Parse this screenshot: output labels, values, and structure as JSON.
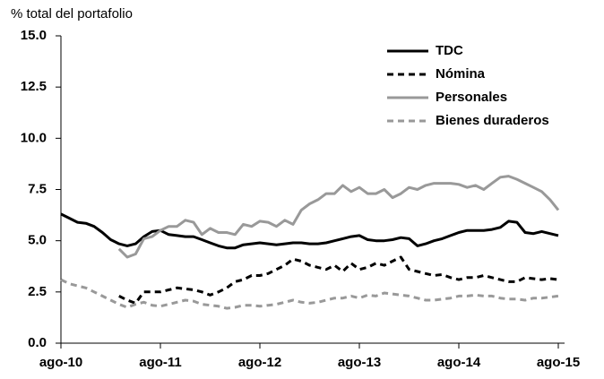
{
  "chart_data": {
    "type": "line",
    "y_label": "% total del portafolio",
    "categories": [
      "ago-10",
      null,
      null,
      null,
      null,
      null,
      null,
      null,
      null,
      null,
      null,
      null,
      "ago-11",
      null,
      null,
      null,
      null,
      null,
      null,
      null,
      null,
      null,
      null,
      null,
      "ago-12",
      null,
      null,
      null,
      null,
      null,
      null,
      null,
      null,
      null,
      null,
      null,
      "ago-13",
      null,
      null,
      null,
      null,
      null,
      null,
      null,
      null,
      null,
      null,
      null,
      "ago-14",
      null,
      null,
      null,
      null,
      null,
      null,
      null,
      null,
      null,
      null,
      null,
      "ago-15"
    ],
    "series": [
      {
        "name": "TDC",
        "color": "#000000",
        "dash": false,
        "values": [
          6.3,
          6.1,
          5.9,
          5.85,
          5.7,
          5.4,
          5.05,
          4.85,
          4.75,
          4.85,
          5.2,
          5.45,
          5.5,
          5.3,
          5.25,
          5.2,
          5.2,
          5.05,
          4.9,
          4.75,
          4.65,
          4.65,
          4.8,
          4.85,
          4.9,
          4.85,
          4.8,
          4.85,
          4.9,
          4.9,
          4.85,
          4.85,
          4.9,
          5.0,
          5.1,
          5.2,
          5.25,
          5.05,
          5.0,
          5.0,
          5.05,
          5.15,
          5.1,
          4.75,
          4.85,
          5.0,
          5.1,
          5.25,
          5.4,
          5.5,
          5.5,
          5.5,
          5.55,
          5.65,
          5.95,
          5.9,
          5.4,
          5.35,
          5.45,
          5.35,
          5.25
        ]
      },
      {
        "name": "Nómina",
        "color": "#000000",
        "dash": true,
        "values": [
          null,
          null,
          null,
          null,
          null,
          null,
          null,
          2.3,
          2.1,
          1.95,
          2.5,
          2.5,
          2.5,
          2.6,
          2.7,
          2.65,
          2.6,
          2.5,
          2.35,
          2.5,
          2.7,
          3.0,
          3.1,
          3.3,
          3.3,
          3.4,
          3.6,
          3.8,
          4.1,
          4.0,
          3.8,
          3.7,
          3.6,
          3.8,
          3.5,
          3.9,
          3.6,
          3.7,
          3.9,
          3.8,
          4.0,
          4.2,
          3.6,
          3.5,
          3.4,
          3.3,
          3.35,
          3.2,
          3.1,
          3.2,
          3.2,
          3.3,
          3.2,
          3.1,
          3.0,
          3.0,
          3.2,
          3.15,
          3.1,
          3.15,
          3.1
        ]
      },
      {
        "name": "Personales",
        "color": "#999999",
        "dash": false,
        "values": [
          null,
          null,
          null,
          null,
          null,
          null,
          null,
          4.6,
          4.2,
          4.35,
          5.1,
          5.2,
          5.5,
          5.7,
          5.7,
          6.0,
          5.9,
          5.3,
          5.6,
          5.4,
          5.4,
          5.3,
          5.8,
          5.7,
          5.95,
          5.9,
          5.7,
          6.0,
          5.8,
          6.5,
          6.8,
          7.0,
          7.3,
          7.3,
          7.7,
          7.4,
          7.6,
          7.3,
          7.3,
          7.5,
          7.1,
          7.3,
          7.6,
          7.5,
          7.7,
          7.8,
          7.8,
          7.8,
          7.75,
          7.6,
          7.7,
          7.5,
          7.8,
          8.1,
          8.15,
          8.0,
          7.8,
          7.6,
          7.4,
          7.0,
          6.5
        ]
      },
      {
        "name": "Bienes duraderos",
        "color": "#999999",
        "dash": true,
        "values": [
          3.1,
          2.9,
          2.8,
          2.7,
          2.5,
          2.3,
          2.1,
          1.9,
          1.75,
          1.9,
          2.0,
          1.85,
          1.8,
          1.9,
          2.0,
          2.1,
          2.05,
          1.9,
          1.85,
          1.8,
          1.7,
          1.75,
          1.85,
          1.85,
          1.8,
          1.85,
          1.9,
          2.0,
          2.1,
          2.0,
          1.95,
          2.0,
          2.1,
          2.2,
          2.2,
          2.3,
          2.2,
          2.35,
          2.3,
          2.45,
          2.4,
          2.35,
          2.3,
          2.2,
          2.1,
          2.1,
          2.15,
          2.2,
          2.3,
          2.3,
          2.35,
          2.3,
          2.3,
          2.2,
          2.15,
          2.15,
          2.1,
          2.2,
          2.2,
          2.25,
          2.3
        ]
      }
    ],
    "ylim": [
      0,
      15
    ],
    "yticks": [
      {
        "value": 0,
        "label": "0.0"
      },
      {
        "value": 2.5,
        "label": "2.5"
      },
      {
        "value": 5,
        "label": "5.0"
      },
      {
        "value": 7.5,
        "label": "7.5"
      },
      {
        "value": 10,
        "label": "10.0"
      },
      {
        "value": 12.5,
        "label": "12.5"
      },
      {
        "value": 15,
        "label": "15.0"
      }
    ],
    "grid": false,
    "legend": "top-right"
  }
}
